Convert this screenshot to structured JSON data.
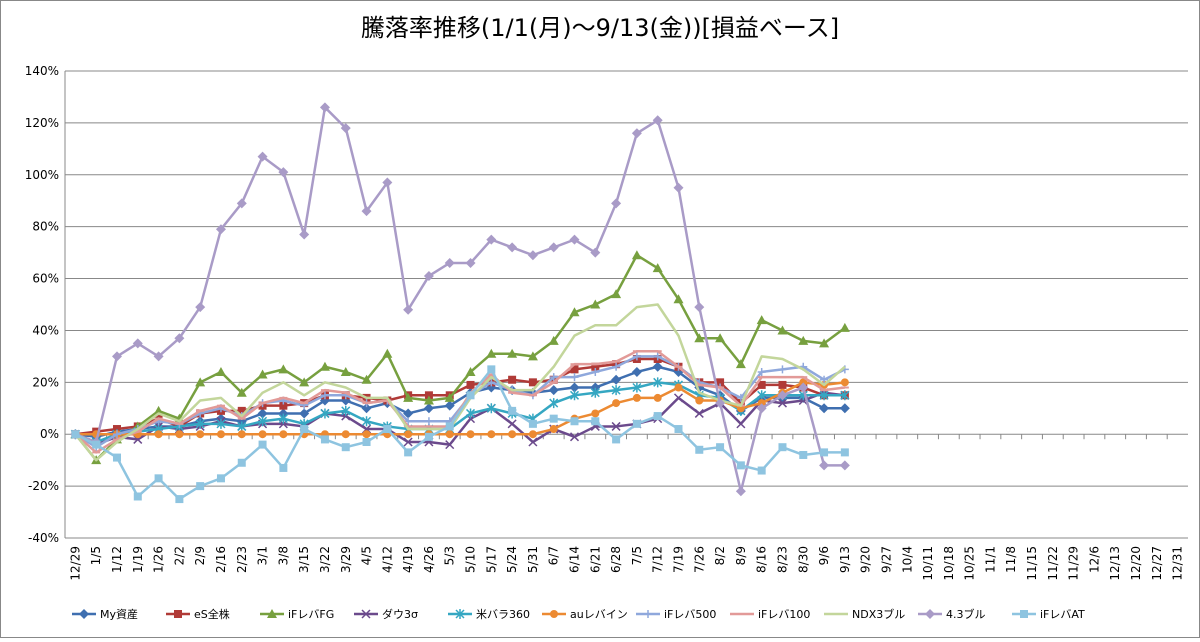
{
  "chart_data": {
    "type": "line",
    "title": "騰落率推移(1/1(月)～9/13(金))[損益ベース]",
    "categories": [
      "12/29",
      "1/5",
      "1/12",
      "1/19",
      "1/26",
      "2/2",
      "2/9",
      "2/16",
      "2/23",
      "3/1",
      "3/8",
      "3/15",
      "3/22",
      "3/29",
      "4/5",
      "4/12",
      "4/19",
      "4/26",
      "5/3",
      "5/10",
      "5/17",
      "5/24",
      "5/31",
      "6/7",
      "6/14",
      "6/21",
      "6/28",
      "7/5",
      "7/12",
      "7/19",
      "7/26",
      "8/2",
      "8/9",
      "8/16",
      "8/23",
      "8/30",
      "9/6",
      "9/13",
      "9/20",
      "9/27",
      "10/4",
      "10/11",
      "10/18",
      "10/25",
      "11/1",
      "11/8",
      "11/15",
      "11/22",
      "11/29",
      "12/6",
      "12/13",
      "12/20",
      "12/27",
      "12/31"
    ],
    "ylim": [
      -40,
      140
    ],
    "yticks": [
      {
        "value": -40,
        "label": "-40%"
      },
      {
        "value": -20,
        "label": "-20%"
      },
      {
        "value": 0,
        "label": "0%"
      },
      {
        "value": 20,
        "label": "20%"
      },
      {
        "value": 40,
        "label": "40%"
      },
      {
        "value": 60,
        "label": "60%"
      },
      {
        "value": 80,
        "label": "80%"
      },
      {
        "value": 100,
        "label": "100%"
      },
      {
        "value": 120,
        "label": "120%"
      },
      {
        "value": 140,
        "label": "140%"
      }
    ],
    "grid": true,
    "legend": "bottom",
    "series": [
      {
        "name": "My資産",
        "color": "#3f6fb0",
        "marker": "diamond",
        "values": [
          0,
          -1,
          1,
          2,
          3,
          3,
          5,
          6,
          5,
          8,
          8,
          8,
          13,
          13,
          10,
          12,
          8,
          10,
          11,
          16,
          18,
          17,
          16,
          17,
          18,
          18,
          21,
          24,
          26,
          24,
          18,
          15,
          9,
          14,
          14,
          14,
          10,
          10,
          null,
          null,
          null,
          null,
          null,
          null,
          null,
          null,
          null,
          null,
          null,
          null,
          null,
          null,
          null,
          null
        ]
      },
      {
        "name": "eS全株",
        "color": "#b03a37",
        "marker": "square",
        "values": [
          0,
          1,
          2,
          3,
          6,
          3,
          8,
          9,
          9,
          11,
          11,
          12,
          15,
          15,
          14,
          13,
          15,
          15,
          15,
          19,
          20,
          21,
          20,
          21,
          25,
          26,
          27,
          29,
          29,
          26,
          20,
          20,
          12,
          19,
          19,
          18,
          15,
          15,
          null,
          null,
          null,
          null,
          null,
          null,
          null,
          null,
          null,
          null,
          null,
          null,
          null,
          null,
          null,
          null
        ]
      },
      {
        "name": "iFレバFG",
        "color": "#77a03f",
        "marker": "triangle",
        "values": [
          0,
          -10,
          -2,
          3,
          9,
          6,
          20,
          24,
          16,
          23,
          25,
          20,
          26,
          24,
          21,
          31,
          14,
          13,
          14,
          24,
          31,
          31,
          30,
          36,
          47,
          50,
          54,
          69,
          64,
          52,
          37,
          37,
          27,
          44,
          40,
          36,
          35,
          41,
          null,
          null,
          null,
          null,
          null,
          null,
          null,
          null,
          null,
          null,
          null,
          null,
          null,
          null,
          null,
          null
        ]
      },
      {
        "name": "ダウ3σ",
        "color": "#6b4a8c",
        "marker": "x",
        "values": [
          0,
          -4,
          -1,
          -2,
          3,
          2,
          3,
          5,
          3,
          4,
          4,
          3,
          8,
          7,
          2,
          2,
          -3,
          -3,
          -4,
          6,
          10,
          4,
          -3,
          2,
          -1,
          3,
          3,
          4,
          6,
          14,
          8,
          12,
          4,
          13,
          12,
          13,
          16,
          15,
          null,
          null,
          null,
          null,
          null,
          null,
          null,
          null,
          null,
          null,
          null,
          null,
          null,
          null,
          null,
          null
        ]
      },
      {
        "name": "米バラ360",
        "color": "#35a7c2",
        "marker": "star",
        "values": [
          0,
          -3,
          0,
          1,
          2,
          3,
          4,
          4,
          3,
          5,
          6,
          4,
          8,
          9,
          5,
          3,
          2,
          2,
          2,
          8,
          10,
          8,
          6,
          12,
          15,
          16,
          17,
          18,
          20,
          19,
          15,
          14,
          9,
          15,
          15,
          15,
          15,
          15,
          null,
          null,
          null,
          null,
          null,
          null,
          null,
          null,
          null,
          null,
          null,
          null,
          null,
          null,
          null,
          null
        ]
      },
      {
        "name": "auレバイン",
        "color": "#ec8a32",
        "marker": "circle",
        "values": [
          0,
          0,
          0,
          0,
          0,
          0,
          0,
          0,
          0,
          0,
          0,
          0,
          0,
          0,
          0,
          0,
          0,
          0,
          0,
          0,
          0,
          0,
          0,
          2,
          6,
          8,
          12,
          14,
          14,
          18,
          13,
          13,
          10,
          12,
          16,
          20,
          19,
          20,
          null,
          null,
          null,
          null,
          null,
          null,
          null,
          null,
          null,
          null,
          null,
          null,
          null,
          null,
          null,
          null
        ]
      },
      {
        "name": "iFレバ500",
        "color": "#8fa8dc",
        "marker": "plus",
        "values": [
          0,
          -5,
          0,
          2,
          5,
          4,
          8,
          10,
          7,
          12,
          13,
          11,
          15,
          15,
          12,
          13,
          5,
          5,
          5,
          15,
          20,
          17,
          15,
          22,
          22,
          24,
          26,
          30,
          30,
          26,
          20,
          18,
          14,
          24,
          25,
          26,
          21,
          25,
          null,
          null,
          null,
          null,
          null,
          null,
          null,
          null,
          null,
          null,
          null,
          null,
          null,
          null,
          null,
          null
        ]
      },
      {
        "name": "iFレバ100",
        "color": "#e29a98",
        "marker": "dash",
        "values": [
          0,
          -7,
          -2,
          1,
          6,
          4,
          9,
          11,
          6,
          12,
          14,
          12,
          17,
          16,
          12,
          13,
          3,
          3,
          3,
          16,
          23,
          16,
          15,
          20,
          27,
          27,
          28,
          32,
          32,
          26,
          19,
          18,
          11,
          22,
          22,
          22,
          17,
          18,
          null,
          null,
          null,
          null,
          null,
          null,
          null,
          null,
          null,
          null,
          null,
          null,
          null,
          null,
          null,
          null
        ]
      },
      {
        "name": "NDX3ブル",
        "color": "#c3d69b",
        "marker": "none",
        "values": [
          0,
          -10,
          -3,
          2,
          8,
          5,
          13,
          14,
          7,
          16,
          20,
          15,
          20,
          18,
          14,
          14,
          2,
          2,
          2,
          14,
          22,
          17,
          17,
          26,
          38,
          42,
          42,
          49,
          50,
          38,
          16,
          13,
          11,
          30,
          29,
          25,
          19,
          26,
          null,
          null,
          null,
          null,
          null,
          null,
          null,
          null,
          null,
          null,
          null,
          null,
          null,
          null,
          null,
          null
        ]
      },
      {
        "name": "4.3ブル",
        "color": "#a99bc7",
        "marker": "diamond",
        "values": [
          0,
          -3,
          30,
          35,
          30,
          37,
          49,
          79,
          89,
          107,
          101,
          77,
          126,
          118,
          86,
          97,
          48,
          61,
          66,
          66,
          75,
          72,
          69,
          72,
          75,
          70,
          89,
          116,
          121,
          95,
          49,
          12,
          -22,
          10,
          15,
          18,
          -12,
          -12,
          null,
          null,
          null,
          null,
          null,
          null,
          null,
          null,
          null,
          null,
          null,
          null,
          null,
          null,
          null,
          null
        ]
      },
      {
        "name": "iFレバAT",
        "color": "#8ec4e0",
        "marker": "square",
        "values": [
          0,
          -4,
          -9,
          -24,
          -17,
          -25,
          -20,
          -17,
          -11,
          -4,
          -13,
          2,
          -2,
          -5,
          -3,
          2,
          -7,
          -1,
          3,
          15,
          25,
          9,
          4,
          6,
          5,
          5,
          -2,
          4,
          7,
          2,
          -6,
          -5,
          -12,
          -14,
          -5,
          -8,
          -7,
          -7,
          null,
          null,
          null,
          null,
          null,
          null,
          null,
          null,
          null,
          null,
          null,
          null,
          null,
          null,
          null,
          null
        ]
      }
    ]
  }
}
